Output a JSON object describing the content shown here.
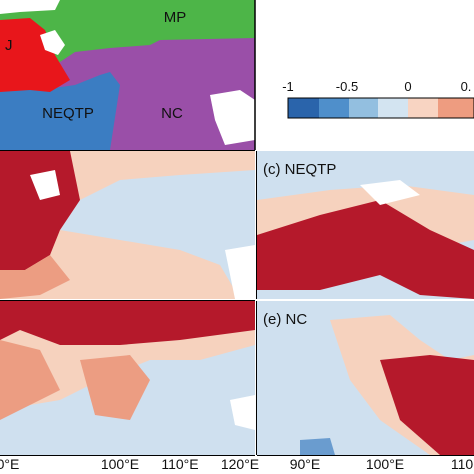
{
  "regions": {
    "mp": "MP",
    "j": "J",
    "neqtp": "NEQTP",
    "nc": "NC"
  },
  "colorbar": {
    "ticks": [
      "-1",
      "-0.5",
      "0",
      "0."
    ]
  },
  "panels": {
    "c": "(c) NEQTP",
    "e": "(e) NC"
  },
  "x_axis": {
    "left": [
      "0°E",
      "100°E",
      "110°E",
      "120°E"
    ],
    "right": [
      "90°E",
      "100°E",
      "110"
    ]
  }
}
